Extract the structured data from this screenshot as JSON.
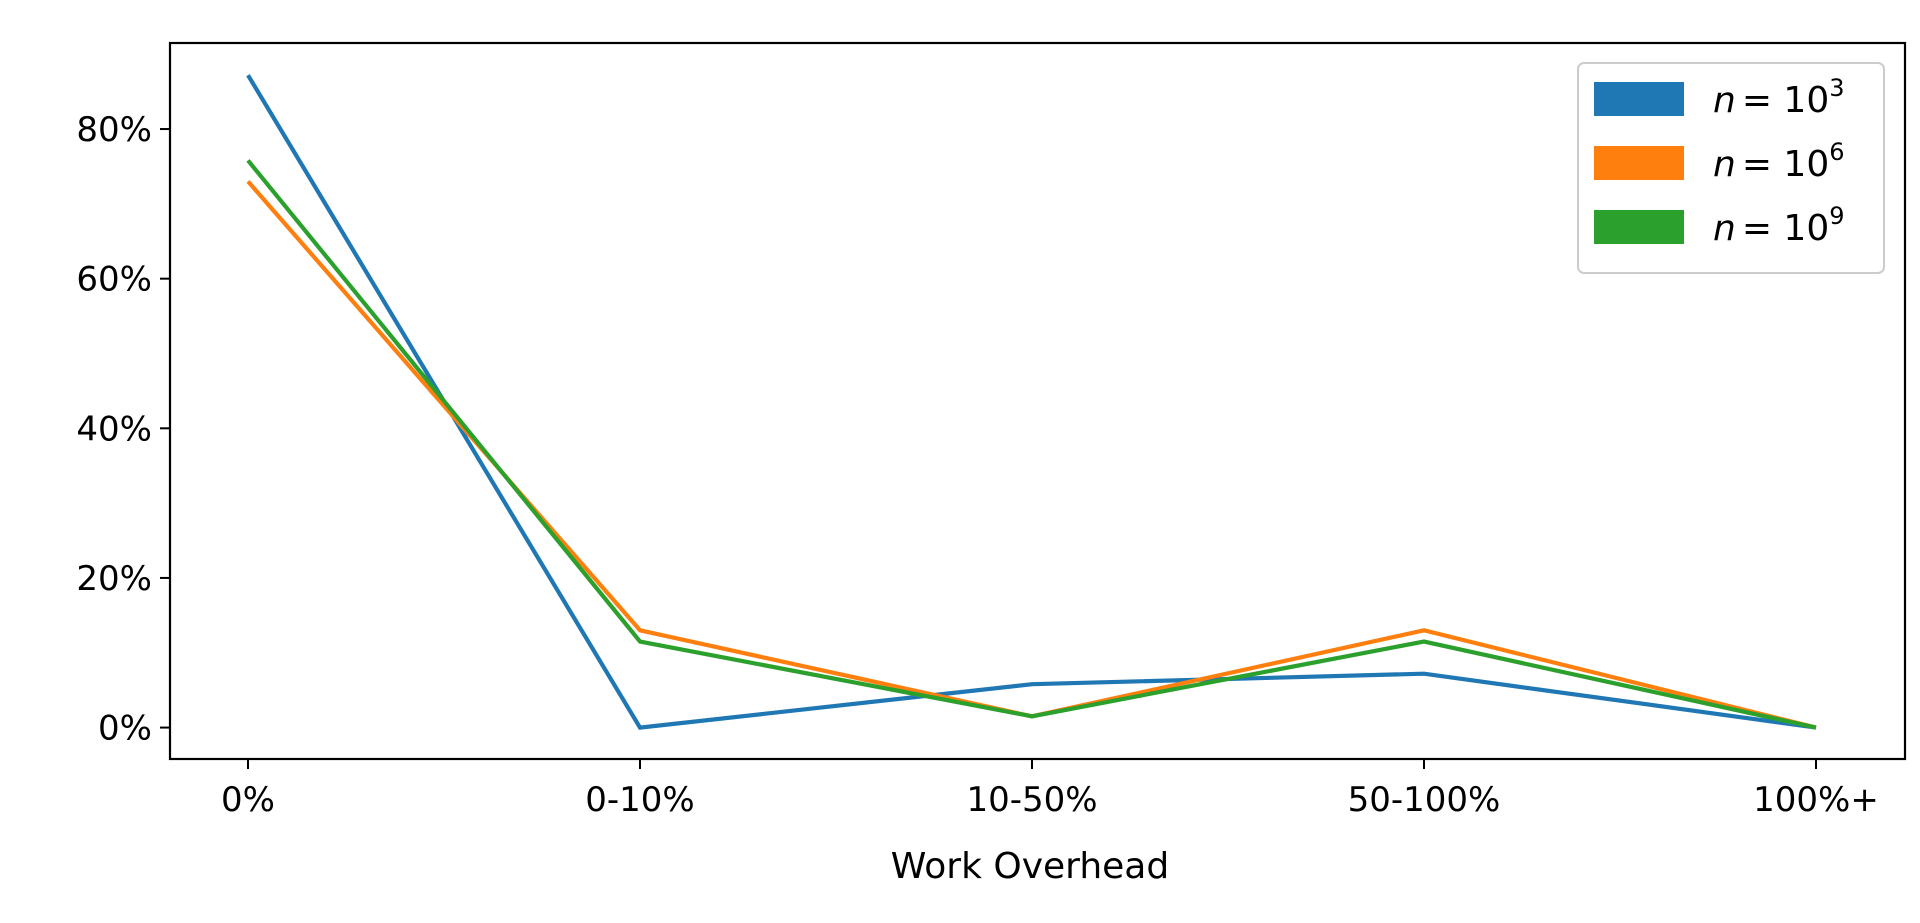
{
  "chart_data": {
    "type": "line",
    "title": "",
    "xlabel": "Work Overhead",
    "ylabel": "",
    "categories": [
      "0%",
      "0-10%",
      "10-50%",
      "50-100%",
      "100%+"
    ],
    "ylim": [
      -4.2,
      91.5
    ],
    "yticks": [
      0,
      20,
      40,
      60,
      80
    ],
    "ytick_labels": [
      "0%",
      "20%",
      "40%",
      "60%",
      "80%"
    ],
    "grid": false,
    "legend_position": "top-right",
    "series": [
      {
        "name_var": "n",
        "name_eq": "= 10",
        "name_exp": "3",
        "color": "#1f77b4",
        "values": [
          87.2,
          0.0,
          5.8,
          7.2,
          0.0
        ]
      },
      {
        "name_var": "n",
        "name_eq": "= 10",
        "name_exp": "6",
        "color": "#ff7f0e",
        "values": [
          73.0,
          13.0,
          1.5,
          13.0,
          0.0
        ]
      },
      {
        "name_var": "n",
        "name_eq": "= 10",
        "name_exp": "9",
        "color": "#2ca02c",
        "values": [
          75.8,
          11.5,
          1.5,
          11.5,
          0.0
        ]
      }
    ]
  }
}
